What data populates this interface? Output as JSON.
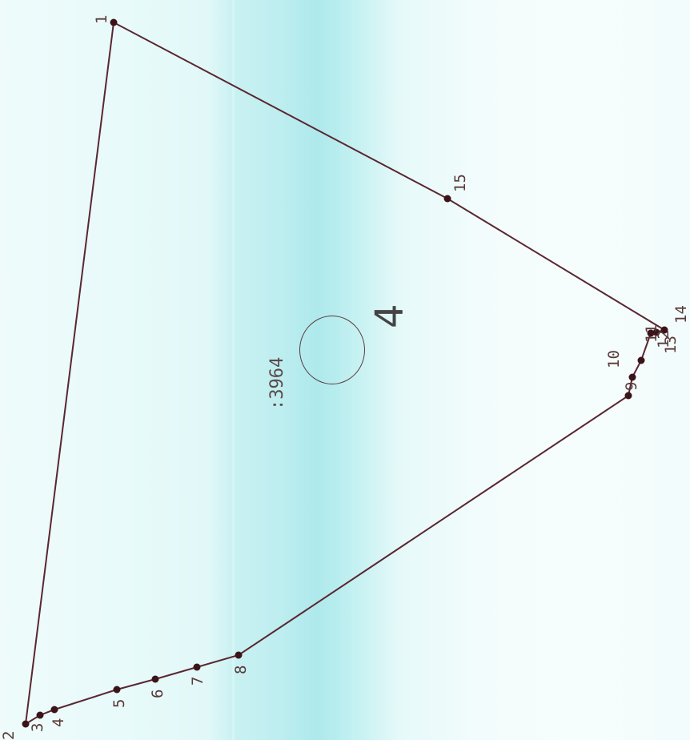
{
  "parcel": {
    "number": "4",
    "area": ":3964"
  },
  "vertices": [
    {
      "label": "1"
    },
    {
      "label": "2"
    },
    {
      "label": "3"
    },
    {
      "label": "4"
    },
    {
      "label": "5"
    },
    {
      "label": "6"
    },
    {
      "label": "7"
    },
    {
      "label": "8"
    },
    {
      "label": "9"
    },
    {
      "label": "10"
    },
    {
      "label": "11"
    },
    {
      "label": "12"
    },
    {
      "label": "13"
    },
    {
      "label": "14"
    },
    {
      "label": "15"
    }
  ]
}
